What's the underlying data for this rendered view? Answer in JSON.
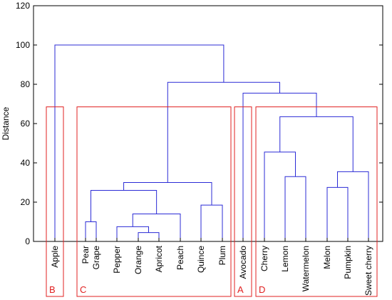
{
  "chart_data": {
    "type": "dendrogram",
    "ylabel": "Distance",
    "ylim": [
      0,
      120
    ],
    "yticks": [
      0,
      20,
      40,
      60,
      80,
      100,
      120
    ],
    "leaves": [
      "Apple",
      "Pear",
      "Grape",
      "Pepper",
      "Orange",
      "Apricot",
      "Peach",
      "Quince",
      "Plum",
      "Avocado",
      "Cherry",
      "Lemon",
      "Watermelon",
      "Melon",
      "Pumpkin",
      "Sweet cherry"
    ],
    "merges": [
      {
        "left": "Orange",
        "right": "Apricot",
        "height": 4.5
      },
      {
        "left": "Pepper",
        "right": "(Orange, Apricot)",
        "height": 7.5
      },
      {
        "left": "Pear",
        "right": "Grape",
        "height": 10
      },
      {
        "left": "(Pepper, Orange, Apricot)",
        "right": "Peach",
        "height": 14
      },
      {
        "left": "Quince",
        "right": "Plum",
        "height": 18.5
      },
      {
        "left": "(Pear, Grape)",
        "right": "(Pepper, Orange, Apricot, Peach)",
        "height": 26
      },
      {
        "left": "Melon",
        "right": "Pumpkin",
        "height": 27.5
      },
      {
        "left": "(Pear … Peach)",
        "right": "(Quince, Plum)",
        "height": 30
      },
      {
        "left": "Lemon",
        "right": "Watermelon",
        "height": 33
      },
      {
        "left": "(Melon, Pumpkin)",
        "right": "Sweet cherry",
        "height": 35.5
      },
      {
        "left": "Cherry",
        "right": "(Lemon, Watermelon)",
        "height": 45.5
      },
      {
        "left": "(Cherry, Lemon, Watermelon)",
        "right": "(Melon, Pumpkin, Sweet cherry)",
        "height": 63.5
      },
      {
        "left": "Avocado",
        "right": "(Cherry … Sweet cherry)",
        "height": 75.5
      },
      {
        "left": "(Pear … Plum)",
        "right": "(Avocado … Sweet cherry)",
        "height": 81
      },
      {
        "left": "Apple",
        "right": "(Pear … Sweet cherry)",
        "height": 100
      }
    ],
    "groups": [
      {
        "label": "B",
        "first_leaf": "Apple",
        "last_leaf": "Apple",
        "top_height": 68.5
      },
      {
        "label": "C",
        "first_leaf": "Pear",
        "last_leaf": "Plum",
        "top_height": 68.5
      },
      {
        "label": "A",
        "first_leaf": "Avocado",
        "last_leaf": "Avocado",
        "top_height": 68.5
      },
      {
        "label": "D",
        "first_leaf": "Cherry",
        "last_leaf": "Sweet cherry",
        "top_height": 68.5
      }
    ],
    "colors": {
      "links": "#2b2bd6",
      "groups": "#e02020",
      "axis": "#000000"
    }
  }
}
